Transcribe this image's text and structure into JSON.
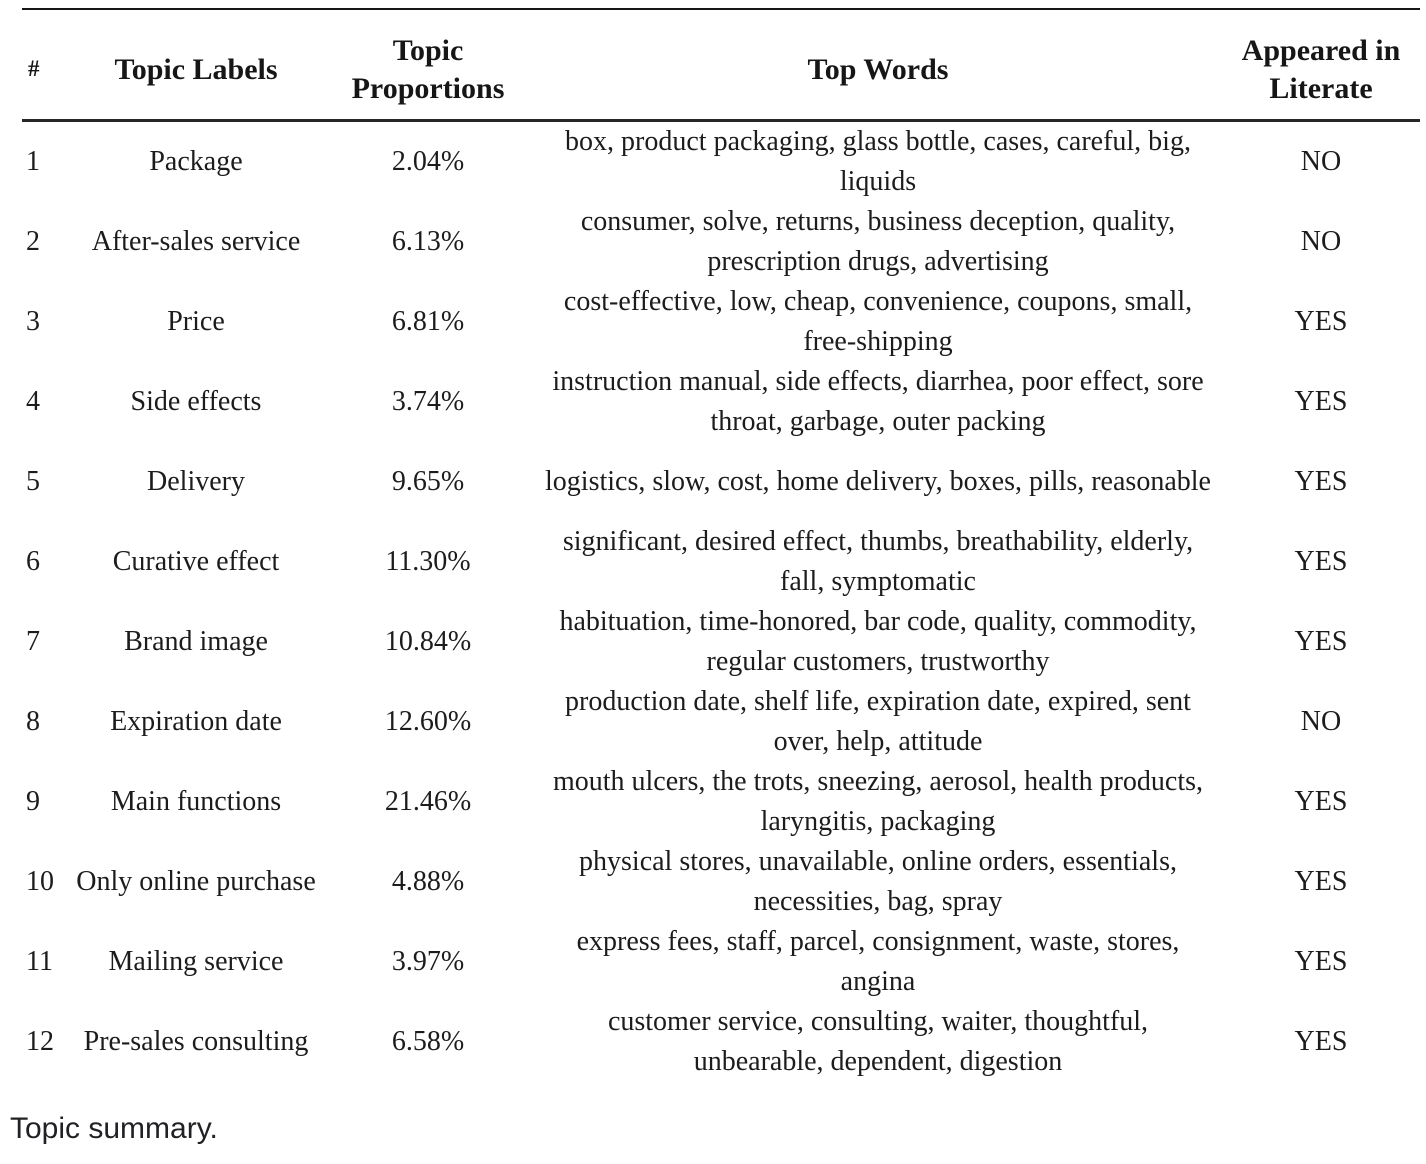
{
  "table": {
    "caption": "Topic summary.",
    "columns": {
      "number": "#",
      "label": "Topic Labels",
      "proportion": "Topic Proportions",
      "top_words": "Top Words",
      "appeared": "Appeared in Literate"
    },
    "rows": [
      {
        "num": "1",
        "label": "Package",
        "proportion": "2.04%",
        "top_words": "box, product packaging, glass bottle, cases, careful, big, liquids",
        "appeared": "NO"
      },
      {
        "num": "2",
        "label": "After-sales service",
        "proportion": "6.13%",
        "top_words": "consumer, solve, returns, business deception, quality, prescription drugs, advertising",
        "appeared": "NO"
      },
      {
        "num": "3",
        "label": "Price",
        "proportion": "6.81%",
        "top_words": "cost-effective, low, cheap, convenience, coupons, small, free-shipping",
        "appeared": "YES"
      },
      {
        "num": "4",
        "label": "Side effects",
        "proportion": "3.74%",
        "top_words": "instruction manual, side effects, diarrhea, poor effect, sore throat, garbage, outer packing",
        "appeared": "YES"
      },
      {
        "num": "5",
        "label": "Delivery",
        "proportion": "9.65%",
        "top_words": "logistics, slow, cost, home delivery, boxes, pills, reasonable",
        "appeared": "YES"
      },
      {
        "num": "6",
        "label": "Curative effect",
        "proportion": "11.30%",
        "top_words": "significant, desired effect, thumbs, breathability, elderly, fall, symptomatic",
        "appeared": "YES"
      },
      {
        "num": "7",
        "label": "Brand image",
        "proportion": "10.84%",
        "top_words": "habituation, time-honored, bar code, quality, commodity, regular customers, trustworthy",
        "appeared": "YES"
      },
      {
        "num": "8",
        "label": "Expiration date",
        "proportion": "12.60%",
        "top_words": "production date, shelf life, expiration date, expired, sent over, help, attitude",
        "appeared": "NO"
      },
      {
        "num": "9",
        "label": "Main functions",
        "proportion": "21.46%",
        "top_words": "mouth ulcers, the trots, sneezing, aerosol, health products, laryngitis, packaging",
        "appeared": "YES"
      },
      {
        "num": "10",
        "label": "Only online purchase",
        "proportion": "4.88%",
        "top_words": "physical stores, unavailable, online orders, essentials, necessities, bag, spray",
        "appeared": "YES"
      },
      {
        "num": "11",
        "label": "Mailing service",
        "proportion": "3.97%",
        "top_words": "express fees, staff, parcel, consignment, waste, stores, angina",
        "appeared": "YES"
      },
      {
        "num": "12",
        "label": "Pre-sales consulting",
        "proportion": "6.58%",
        "top_words": "customer service, consulting, waiter, thoughtful, unbearable, dependent, digestion",
        "appeared": "YES"
      }
    ]
  }
}
